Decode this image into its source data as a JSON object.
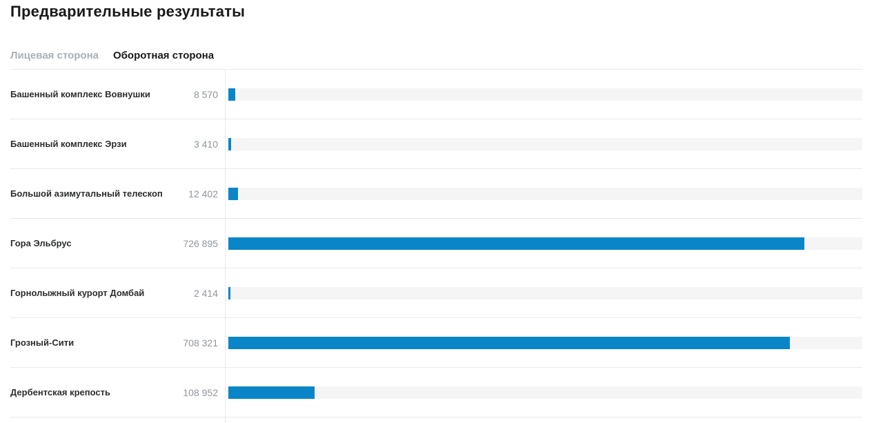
{
  "page": {
    "title": "Предварительные результаты"
  },
  "tabs": [
    {
      "label": "Лицевая сторона",
      "active": false
    },
    {
      "label": "Оборотная сторона",
      "active": true
    }
  ],
  "chart_data": {
    "type": "bar",
    "orientation": "horizontal",
    "title": "Предварительные результаты",
    "xlabel": "",
    "ylabel": "",
    "scale_max": 800000,
    "grid": false,
    "legend": "none",
    "bar_color": "#0a86c8",
    "track_color": "#f5f5f6",
    "categories": [
      "Башенный комплекс Вовнушки",
      "Башенный комплекс Эрзи",
      "Большой азимутальный телескоп",
      "Гора Эльбрус",
      "Горнолыжный курорт Домбай",
      "Грозный-Сити",
      "Дербентская крепость"
    ],
    "values": [
      8570,
      3410,
      12402,
      726895,
      2414,
      708321,
      108952
    ],
    "items": [
      {
        "label": "Башенный комплекс Вовнушки",
        "value": 8570,
        "value_text": "8 570"
      },
      {
        "label": "Башенный комплекс Эрзи",
        "value": 3410,
        "value_text": "3 410"
      },
      {
        "label": "Большой азимутальный телескоп",
        "value": 12402,
        "value_text": "12 402"
      },
      {
        "label": "Гора Эльбрус",
        "value": 726895,
        "value_text": "726 895"
      },
      {
        "label": "Горнолыжный курорт Домбай",
        "value": 2414,
        "value_text": "2 414"
      },
      {
        "label": "Грозный-Сити",
        "value": 708321,
        "value_text": "708 321"
      },
      {
        "label": "Дербентская крепость",
        "value": 108952,
        "value_text": "108 952"
      }
    ]
  }
}
